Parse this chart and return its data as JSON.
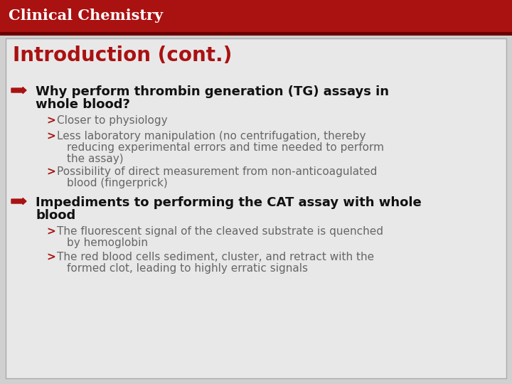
{
  "bg_color": "#d0d0d0",
  "header_bg": "#aa1111",
  "header_border": "#6b0000",
  "header_text": "Clinical Chemistry",
  "header_text_color": "#ffffff",
  "header_font_size": 15,
  "content_bg": "#e8e8e8",
  "content_border": "#aaaaaa",
  "title_text": "Introduction (cont.)",
  "title_color": "#aa1111",
  "title_font_size": 20,
  "bullet_color": "#111111",
  "bullet_font_size": 13,
  "sub_color": "#666666",
  "sub_font_size": 11,
  "arrow_color": "#aa1111",
  "bullet1_text_line1": "Why perform thrombin generation (TG) assays in",
  "bullet1_text_line2": "whole blood?",
  "bullet1_subs": [
    [
      "Closer to physiology",
      1
    ],
    [
      "Less laboratory manipulation (no centrifugation, thereby",
      3
    ],
    [
      "Possibility of direct measurement from non-anticoagulated",
      2
    ]
  ],
  "bullet1_sub_cont": [
    "",
    "reducing experimental errors and time needed to perform\nthe assay)",
    "blood (fingerprick)"
  ],
  "bullet2_text_line1": "Impediments to performing the CAT assay with whole",
  "bullet2_text_line2": "blood",
  "bullet2_subs": [
    [
      "The fluorescent signal of the cleaved substrate is quenched",
      2
    ],
    [
      "The red blood cells sediment, cluster, and retract with the",
      2
    ]
  ],
  "bullet2_sub_cont": [
    "by hemoglobin",
    "formed clot, leading to highly erratic signals"
  ]
}
